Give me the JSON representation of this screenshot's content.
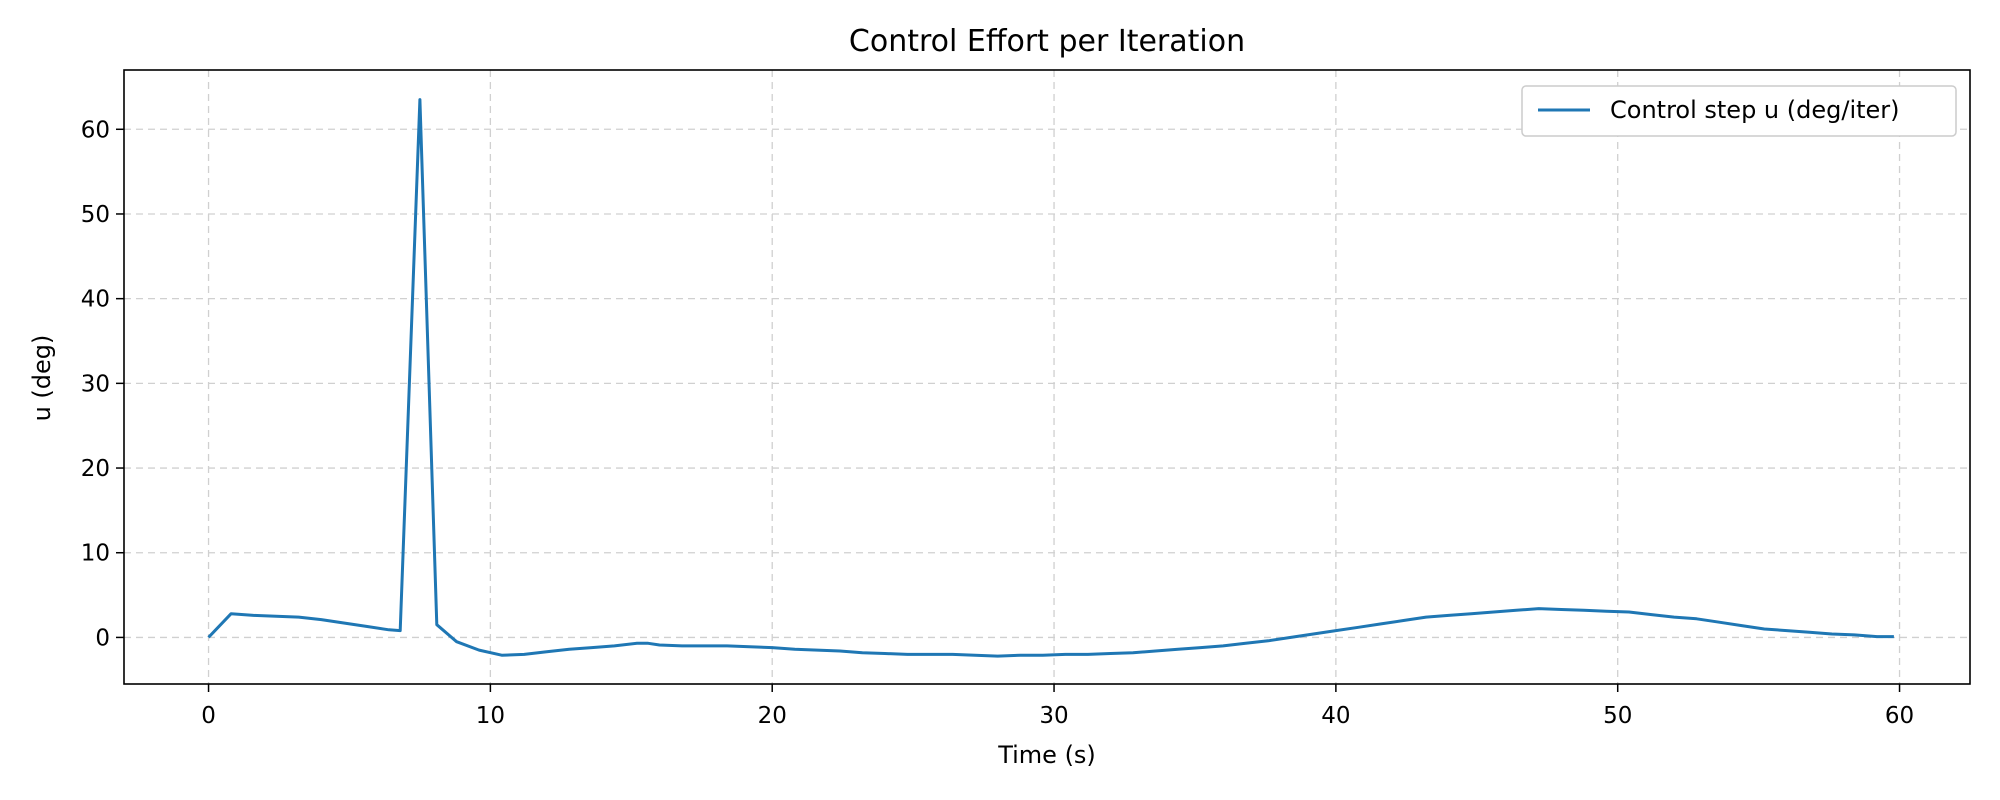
{
  "chart_data": {
    "type": "line",
    "title": "Control Effort per Iteration",
    "xlabel": "Time (s)",
    "ylabel": "u (deg)",
    "xlim": [
      -3,
      62.5
    ],
    "ylim": [
      -5.5,
      67
    ],
    "xticks": [
      0,
      10,
      20,
      30,
      40,
      50,
      60
    ],
    "yticks": [
      0,
      10,
      20,
      30,
      40,
      50,
      60
    ],
    "grid": true,
    "legend_position": "top-right",
    "colors": {
      "series": "#1f77b4",
      "grid": "#d0d0d0",
      "axes": "#000000"
    },
    "series": [
      {
        "name": "Control step u (deg/iter)",
        "x": [
          0,
          0.8,
          1.6,
          2.4,
          3.2,
          4.0,
          4.8,
          5.6,
          6.4,
          6.8,
          7.5,
          8.1,
          8.8,
          9.6,
          10.4,
          11.2,
          12.0,
          12.8,
          13.6,
          14.4,
          15.2,
          15.6,
          16.0,
          16.8,
          17.6,
          18.4,
          19.2,
          20.0,
          20.8,
          21.6,
          22.4,
          23.2,
          24.0,
          24.8,
          25.6,
          26.4,
          27.2,
          28.0,
          28.8,
          29.6,
          30.4,
          31.2,
          32.0,
          32.8,
          33.6,
          34.4,
          35.2,
          36.0,
          36.8,
          37.6,
          38.4,
          39.2,
          40.0,
          40.8,
          41.6,
          42.4,
          43.2,
          44.0,
          44.8,
          45.6,
          46.4,
          47.2,
          48.0,
          48.8,
          49.6,
          50.4,
          51.2,
          52.0,
          52.8,
          53.6,
          54.4,
          55.2,
          56.0,
          56.8,
          57.6,
          58.4,
          59.2,
          59.8
        ],
        "y": [
          0,
          2.8,
          2.6,
          2.5,
          2.4,
          2.1,
          1.7,
          1.3,
          0.9,
          0.8,
          63.5,
          1.5,
          -0.5,
          -1.5,
          -2.1,
          -2.0,
          -1.7,
          -1.4,
          -1.2,
          -1.0,
          -0.7,
          -0.7,
          -0.9,
          -1.0,
          -1.0,
          -1.0,
          -1.1,
          -1.2,
          -1.4,
          -1.5,
          -1.6,
          -1.8,
          -1.9,
          -2.0,
          -2.0,
          -2.0,
          -2.1,
          -2.2,
          -2.1,
          -2.1,
          -2.0,
          -2.0,
          -1.9,
          -1.8,
          -1.6,
          -1.4,
          -1.2,
          -1.0,
          -0.7,
          -0.4,
          0.0,
          0.4,
          0.8,
          1.2,
          1.6,
          2.0,
          2.4,
          2.6,
          2.8,
          3.0,
          3.2,
          3.4,
          3.3,
          3.2,
          3.1,
          3.0,
          2.7,
          2.4,
          2.2,
          1.8,
          1.4,
          1.0,
          0.8,
          0.6,
          0.4,
          0.3,
          0.1,
          0.1
        ]
      }
    ]
  }
}
